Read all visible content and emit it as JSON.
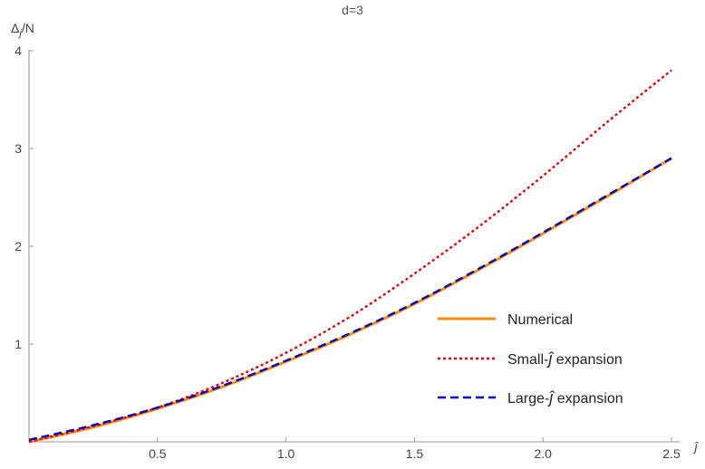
{
  "chart_data": {
    "type": "line",
    "title": "d=3",
    "ylabel": {
      "main": "Δ",
      "sub": "j",
      "suffix": "/N"
    },
    "xlabel": {
      "main": "ĵ"
    },
    "xlim": [
      0,
      2.5
    ],
    "ylim": [
      0,
      4
    ],
    "xticks": [
      0.5,
      1.0,
      1.5,
      2.0,
      2.5
    ],
    "xtick_labels": [
      "0.5",
      "1.0",
      "1.5",
      "2.0",
      "2.5"
    ],
    "yticks": [
      1,
      2,
      3,
      4
    ],
    "ytick_labels": [
      "1",
      "2",
      "3",
      "4"
    ],
    "grid": false,
    "legend_position": "lower-right",
    "series": [
      {
        "name": "Numerical",
        "color": "#ff8c00",
        "style": "solid",
        "x": [
          0,
          0.25,
          0.5,
          0.75,
          1.0,
          1.25,
          1.5,
          1.75,
          2.0,
          2.25,
          2.5
        ],
        "y": [
          0,
          0.15,
          0.34,
          0.56,
          0.82,
          1.1,
          1.41,
          1.76,
          2.13,
          2.51,
          2.9
        ]
      },
      {
        "name": "Small-ĵ expansion",
        "color": "#ee0000",
        "style": "dotted",
        "x": [
          0,
          0.25,
          0.5,
          0.75,
          1.0,
          1.25,
          1.5,
          1.75,
          2.0,
          2.25,
          2.5
        ],
        "y": [
          0,
          0.16,
          0.35,
          0.6,
          0.91,
          1.28,
          1.72,
          2.2,
          2.72,
          3.27,
          3.8
        ]
      },
      {
        "name": "Large-ĵ expansion",
        "color": "#0000cc",
        "style": "dashed",
        "x": [
          0,
          0.25,
          0.5,
          0.75,
          1.0,
          1.25,
          1.5,
          1.75,
          2.0,
          2.25,
          2.5
        ],
        "y": [
          0.02,
          0.17,
          0.35,
          0.57,
          0.83,
          1.11,
          1.42,
          1.77,
          2.14,
          2.52,
          2.9
        ]
      }
    ],
    "legend": [
      {
        "prefix": "Numerical",
        "hat": "",
        "suffix": ""
      },
      {
        "prefix": "Small-",
        "hat": "ĵ",
        "suffix": " expansion"
      },
      {
        "prefix": "Large-",
        "hat": "ĵ",
        "suffix": " expansion"
      }
    ]
  }
}
